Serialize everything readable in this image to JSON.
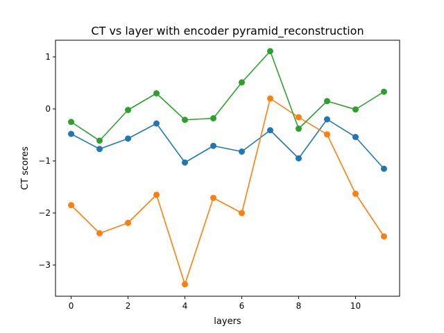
{
  "chart_data": {
    "type": "line",
    "title": "CT vs layer with encoder pyramid_reconstruction",
    "xlabel": "layers",
    "ylabel": "CT scores",
    "x": [
      0,
      1,
      2,
      3,
      4,
      5,
      6,
      7,
      8,
      9,
      10,
      11
    ],
    "xlim": [
      -0.55,
      11.55
    ],
    "ylim": [
      -3.6,
      1.32
    ],
    "xticks": [
      0,
      2,
      4,
      6,
      8,
      10
    ],
    "yticks": [
      -3,
      -2,
      -1,
      0,
      1
    ],
    "grid": false,
    "markers": true,
    "series": [
      {
        "color": "#1f77b4",
        "values": [
          -0.48,
          -0.77,
          -0.57,
          -0.28,
          -1.03,
          -0.71,
          -0.82,
          -0.41,
          -0.95,
          -0.2,
          -0.54,
          -1.15
        ]
      },
      {
        "color": "#ff7f0e",
        "values": [
          -1.85,
          -2.39,
          -2.19,
          -1.65,
          -3.37,
          -1.71,
          -2.0,
          0.2,
          -0.16,
          -0.49,
          -1.63,
          -2.45
        ]
      },
      {
        "color": "#2ca02c",
        "values": [
          -0.25,
          -0.61,
          -0.02,
          0.3,
          -0.21,
          -0.18,
          0.51,
          1.11,
          -0.38,
          0.15,
          -0.01,
          0.33
        ]
      }
    ]
  }
}
